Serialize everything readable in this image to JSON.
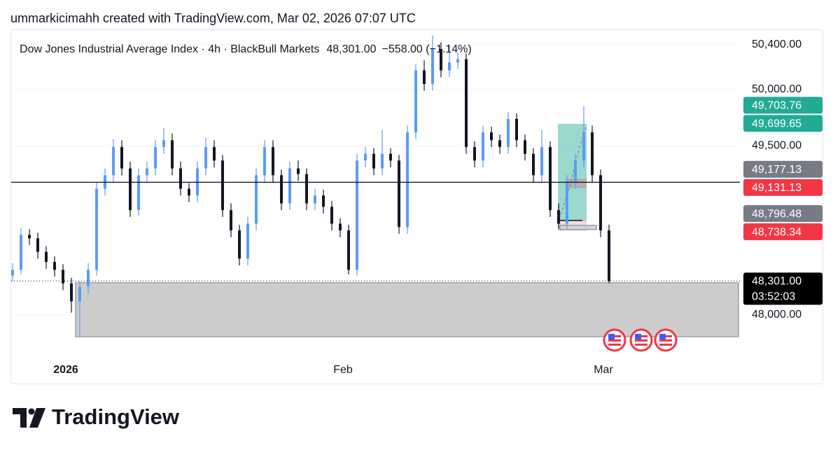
{
  "header": {
    "credit": "ummarkicimahh created with TradingView.com, Mar 02, 2026 07:07 UTC"
  },
  "chart_data": {
    "type": "candlestick",
    "title": "Dow Jones Industrial Average Index · 4h · BlackBull Markets",
    "last_price": "48,301.00",
    "change": "−558.00 (−1.14%)",
    "categories": [
      null,
      null,
      null,
      null,
      null,
      null,
      null,
      "2026",
      null,
      null,
      null,
      null,
      null,
      null,
      null,
      null,
      null,
      null,
      null,
      null,
      null,
      null,
      null,
      null,
      null,
      null,
      null,
      null,
      null,
      null,
      null,
      null,
      null,
      null,
      null,
      null,
      null,
      null,
      null,
      null,
      "Feb",
      null,
      null,
      null,
      null,
      null,
      null,
      null,
      null,
      null,
      null,
      null,
      null,
      null,
      null,
      null,
      null,
      null,
      null,
      null,
      null,
      null,
      null,
      null,
      null,
      null,
      null,
      null,
      null,
      null,
      null,
      "Mar"
    ],
    "open": [
      48350,
      48400,
      48710,
      48680,
      48560,
      48470,
      48400,
      48280,
      48120,
      48250,
      48400,
      49120,
      49240,
      49490,
      49300,
      48930,
      49240,
      49300,
      49490,
      49550,
      49300,
      49120,
      49060,
      49300,
      49490,
      49370,
      48930,
      48750,
      48500,
      48810,
      49240,
      49490,
      49240,
      48990,
      49300,
      49250,
      48990,
      49060,
      48960,
      48810,
      48750,
      48400,
      49370,
      49430,
      49300,
      49430,
      49370,
      48780,
      49620,
      50170,
      50050,
      50360,
      50170,
      50240,
      50270,
      49490,
      49370,
      49620,
      49550,
      49490,
      49740,
      49550,
      49430,
      49240,
      49490,
      48930,
      48810,
      49180,
      49370,
      49620,
      49240,
      48750
    ],
    "high": [
      48460,
      48770,
      48760,
      48730,
      48610,
      48520,
      48450,
      48330,
      48300,
      48460,
      49180,
      49300,
      49560,
      49550,
      49360,
      49300,
      49360,
      49550,
      49660,
      49610,
      49360,
      49170,
      49360,
      49570,
      49550,
      49420,
      48990,
      48800,
      48870,
      49300,
      49550,
      49550,
      49290,
      49360,
      49370,
      49300,
      49120,
      49110,
      49010,
      48860,
      48800,
      49430,
      49490,
      49480,
      49640,
      49480,
      49420,
      49680,
      50230,
      50260,
      50480,
      50420,
      50400,
      50330,
      50320,
      49540,
      49680,
      49670,
      49600,
      49800,
      49790,
      49600,
      49480,
      49640,
      49540,
      48990,
      49240,
      49430,
      49850,
      49680,
      49290,
      48800
    ],
    "low": [
      48300,
      48360,
      48620,
      48500,
      48410,
      48340,
      48220,
      48020,
      47810,
      48190,
      48350,
      49060,
      49180,
      49240,
      48870,
      48880,
      49180,
      49240,
      49430,
      49240,
      49060,
      49000,
      49000,
      49240,
      49310,
      48870,
      48690,
      48440,
      48440,
      48750,
      49180,
      49180,
      48930,
      48930,
      49190,
      48930,
      48930,
      48900,
      48750,
      48690,
      48360,
      48350,
      49310,
      49240,
      49240,
      49310,
      48720,
      48720,
      49560,
      49990,
      49990,
      50110,
      50110,
      50180,
      49430,
      49310,
      49310,
      49490,
      49430,
      49430,
      49490,
      49370,
      49180,
      49180,
      48870,
      48760,
      48760,
      49120,
      49310,
      49180,
      48690,
      48280
    ],
    "close": [
      48400,
      48710,
      48680,
      48560,
      48470,
      48400,
      48280,
      48120,
      48250,
      48400,
      49120,
      49240,
      49490,
      49300,
      48930,
      49240,
      49300,
      49490,
      49550,
      49300,
      49120,
      49060,
      49300,
      49490,
      49370,
      48930,
      48750,
      48500,
      48810,
      49240,
      49490,
      49240,
      48990,
      49300,
      49250,
      48990,
      49060,
      48960,
      48810,
      48750,
      48400,
      49370,
      49430,
      49300,
      49430,
      49370,
      48780,
      49620,
      50170,
      50050,
      50360,
      50170,
      50240,
      50270,
      49490,
      49370,
      49620,
      49550,
      49490,
      49740,
      49550,
      49430,
      49240,
      49490,
      48930,
      48810,
      49180,
      49370,
      49620,
      49240,
      48750,
      48301
    ],
    "up_color": "#5b9cf6",
    "down_color": "#131722",
    "ylim": [
      47391,
      50534
    ],
    "yticks": [
      {
        "value": 50400,
        "label": "50,400.00"
      },
      {
        "value": 50000,
        "label": "50,000.00"
      },
      {
        "value": 49500,
        "label": "49,500.00"
      },
      {
        "value": 48000,
        "label": "48,000.00"
      }
    ],
    "grid": true,
    "price_labels": [
      {
        "value": 49703.76,
        "label": "49,703.76",
        "color": "#22ab94"
      },
      {
        "value": 49699.65,
        "label": "49,699.65",
        "color": "#22ab94"
      },
      {
        "value": 49177.13,
        "label": "49,177.13",
        "color": "#787b86"
      },
      {
        "value": 49131.13,
        "label": "49,131.13",
        "color": "#f23645"
      },
      {
        "value": 48796.48,
        "label": "48,796.48",
        "color": "#787b86"
      },
      {
        "value": 48738.34,
        "label": "48,738.34",
        "color": "#f23645"
      },
      {
        "value": 48301,
        "label": "48,301.00",
        "color": "#000000"
      }
    ],
    "countdown": "03:52:03"
  },
  "footer": {
    "brand": "TradingView"
  }
}
